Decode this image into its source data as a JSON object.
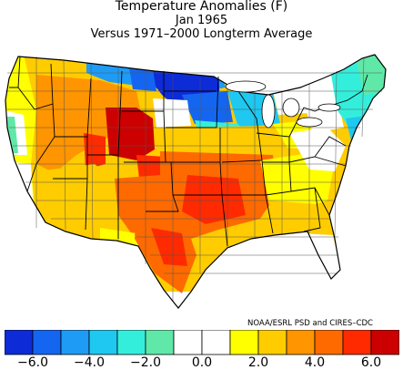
{
  "header": {
    "title": "Temperature Anomalies (F)",
    "subtitle": "Jan 1965",
    "comparison": "Versus 1971–2000 Longterm Average"
  },
  "credit": "NOAA/ESRL PSD and CIRES–CDC",
  "legend": {
    "colors": [
      "#0d2bd6",
      "#1466f0",
      "#1e9bf5",
      "#1ec8f0",
      "#34eedc",
      "#5fe8a8",
      "#ffffff",
      "#ffffff",
      "#ffff00",
      "#ffcc00",
      "#ff9500",
      "#ff6a00",
      "#ff2a00",
      "#cc0000"
    ],
    "ticks": [
      {
        "value": -6.0,
        "label": "−6.0"
      },
      {
        "value": -4.0,
        "label": "−4.0"
      },
      {
        "value": -2.0,
        "label": "−2.0"
      },
      {
        "value": 0.0,
        "label": "0.0"
      },
      {
        "value": 2.0,
        "label": "2.0"
      },
      {
        "value": 4.0,
        "label": "4.0"
      },
      {
        "value": 6.0,
        "label": "6.0"
      }
    ],
    "min": -7.0,
    "max": 7.0
  }
}
